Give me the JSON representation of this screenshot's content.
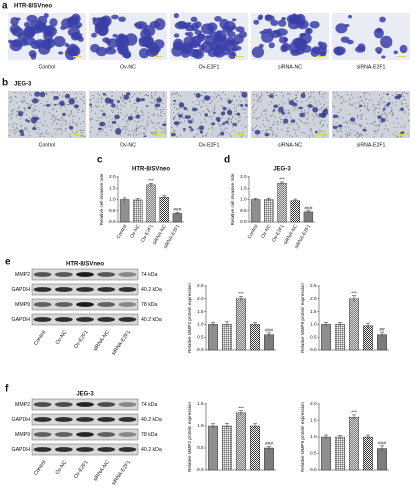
{
  "panel_a": {
    "label": "a",
    "title": "HTR-8/SVneo",
    "image_labels": [
      "Control",
      "Ov-NC",
      "Ov-E2F1",
      "siRNA-NC",
      "siRNA-E2F1"
    ]
  },
  "panel_b": {
    "label": "b",
    "title": "JEG-3",
    "image_labels": [
      "Control",
      "Ov-NC",
      "Ov-E2F1",
      "siRNA-NC",
      "siRNA-E2F1"
    ]
  },
  "panel_e_blot": {
    "label": "e",
    "title": "HTR-8/SVneo",
    "bands": [
      "MMP2",
      "GAPDH",
      "MMP9",
      "GAPDH"
    ],
    "sizes": [
      "74 kDa",
      "40.2 kDa",
      "78 kDa",
      "40.2 kDa"
    ],
    "lanes": [
      "Control",
      "Ov-NC",
      "Ov-E2F1",
      "siRNA-NC",
      "siRNA-E2F1"
    ]
  },
  "panel_f_blot": {
    "label": "f",
    "title": "JEG-3",
    "bands": [
      "MMP2",
      "GAPDH",
      "MMP9",
      "GAPDH"
    ],
    "sizes": [
      "74 kDa",
      "40.2 kDa",
      "78 kDa",
      "40.2 kDa"
    ],
    "lanes": [
      "Control",
      "Ov-NC",
      "Ov-E2F1",
      "siRNA-NC",
      "siRNA-E2F1"
    ]
  },
  "chart_data": [
    {
      "type": "bar",
      "panel_label": "c",
      "title": "HTR-8/SVneo",
      "y_label": "Relative cell invasive rate",
      "categories": [
        "Control",
        "Ov-NC",
        "Ov-E2F1",
        "siRNA-NC",
        "siRNA-E2F1"
      ],
      "values": [
        1.0,
        0.98,
        1.65,
        1.1,
        0.38
      ],
      "errors": [
        0.07,
        0.06,
        0.07,
        0.07,
        0.05
      ],
      "significance": [
        null,
        null,
        "***",
        null,
        "###"
      ],
      "ylim": [
        0,
        2
      ],
      "yticks": [
        {
          "value": 0,
          "label": "0.0"
        },
        0.5,
        {
          "value": 1,
          "label": "1.0"
        },
        1.5,
        {
          "value": 2,
          "label": "2.0"
        }
      ],
      "colors": [
        "#8f8f8f",
        "#555555",
        "#555555",
        "#333333",
        "#7d7d7d"
      ],
      "patterns": [
        "solid",
        "grid",
        "hatch",
        "check",
        "solid"
      ]
    },
    {
      "type": "bar",
      "panel_label": "d",
      "title": "JEG-3",
      "y_label": "Relative cell invasive rate",
      "categories": [
        "Control",
        "Ov-NC",
        "Ov-E2F1",
        "siRNA-NC",
        "siRNA-E2F1"
      ],
      "values": [
        1.0,
        1.0,
        1.72,
        0.95,
        0.45
      ],
      "errors": [
        0.05,
        0.06,
        0.06,
        0.07,
        0.05
      ],
      "significance": [
        null,
        null,
        "***",
        null,
        "###"
      ],
      "ylim": [
        0,
        2
      ],
      "yticks": [
        {
          "value": 0,
          "label": "0.0"
        },
        0.5,
        {
          "value": 1,
          "label": "1.0"
        },
        1.5,
        {
          "value": 2,
          "label": "2.0"
        }
      ],
      "colors": [
        "#8f8f8f",
        "#555555",
        "#555555",
        "#333333",
        "#7d7d7d"
      ],
      "patterns": [
        "solid",
        "grid",
        "hatch",
        "check",
        "solid"
      ]
    },
    {
      "type": "bar",
      "y_label": "Relative MMP2 protein expression",
      "categories": [
        null,
        null,
        null,
        null,
        null
      ],
      "values": [
        1.0,
        1.0,
        2.0,
        1.0,
        0.6
      ],
      "errors": [
        0.08,
        0.1,
        0.1,
        0.08,
        0.07
      ],
      "significance": [
        null,
        null,
        "***",
        null,
        "###"
      ],
      "ylim": [
        0,
        2.5
      ],
      "yticks": [
        {
          "value": 0,
          "label": "0.0"
        },
        0.5,
        {
          "value": 1,
          "label": "1.0"
        },
        1.5,
        {
          "value": 2,
          "label": "2.0"
        },
        2.5
      ],
      "colors": [
        "#8f8f8f",
        "#555555",
        "#555555",
        "#333333",
        "#7d7d7d"
      ],
      "patterns": [
        "solid",
        "grid",
        "hatch",
        "check",
        "solid"
      ]
    },
    {
      "type": "bar",
      "y_label": "Relative MMP9 protein expression",
      "categories": [
        null,
        null,
        null,
        null,
        null
      ],
      "values": [
        1.0,
        1.0,
        2.0,
        0.95,
        0.6
      ],
      "errors": [
        0.08,
        0.08,
        0.12,
        0.1,
        0.1
      ],
      "significance": [
        null,
        null,
        "***",
        null,
        "##"
      ],
      "ylim": [
        0,
        2.5
      ],
      "yticks": [
        {
          "value": 0,
          "label": "0.0"
        },
        0.5,
        {
          "value": 1,
          "label": "1.0"
        },
        1.5,
        {
          "value": 2,
          "label": "2.0"
        },
        2.5
      ],
      "colors": [
        "#8f8f8f",
        "#555555",
        "#555555",
        "#333333",
        "#7d7d7d"
      ],
      "patterns": [
        "solid",
        "grid",
        "hatch",
        "check",
        "solid"
      ]
    },
    {
      "type": "bar",
      "y_label": "Relative MMP2 protein expression",
      "categories": [
        null,
        null,
        null,
        null,
        null
      ],
      "values": [
        1.0,
        1.0,
        1.3,
        1.0,
        0.5
      ],
      "errors": [
        0.05,
        0.06,
        0.05,
        0.05,
        0.04
      ],
      "significance": [
        null,
        null,
        "***",
        null,
        "###"
      ],
      "ylim": [
        0,
        1.5
      ],
      "yticks": [
        {
          "value": 0,
          "label": "0.0"
        },
        0.5,
        {
          "value": 1,
          "label": "1.0"
        },
        1.5
      ],
      "colors": [
        "#8f8f8f",
        "#555555",
        "#555555",
        "#333333",
        "#7d7d7d"
      ],
      "patterns": [
        "solid",
        "grid",
        "hatch",
        "check",
        "solid"
      ]
    },
    {
      "type": "bar",
      "y_label": "Relative MMP9 protein expression",
      "categories": [
        null,
        null,
        null,
        null,
        null
      ],
      "values": [
        1.0,
        1.0,
        1.6,
        1.0,
        0.65
      ],
      "errors": [
        0.06,
        0.05,
        0.07,
        0.06,
        0.08
      ],
      "significance": [
        null,
        null,
        "***",
        null,
        "###"
      ],
      "ylim": [
        0,
        2
      ],
      "yticks": [
        {
          "value": 0,
          "label": "0.0"
        },
        0.5,
        {
          "value": 1,
          "label": "1.0"
        },
        1.5,
        {
          "value": 2,
          "label": "2.0"
        }
      ],
      "colors": [
        "#8f8f8f",
        "#555555",
        "#555555",
        "#333333",
        "#7d7d7d"
      ],
      "patterns": [
        "solid",
        "grid",
        "hatch",
        "check",
        "solid"
      ]
    }
  ]
}
